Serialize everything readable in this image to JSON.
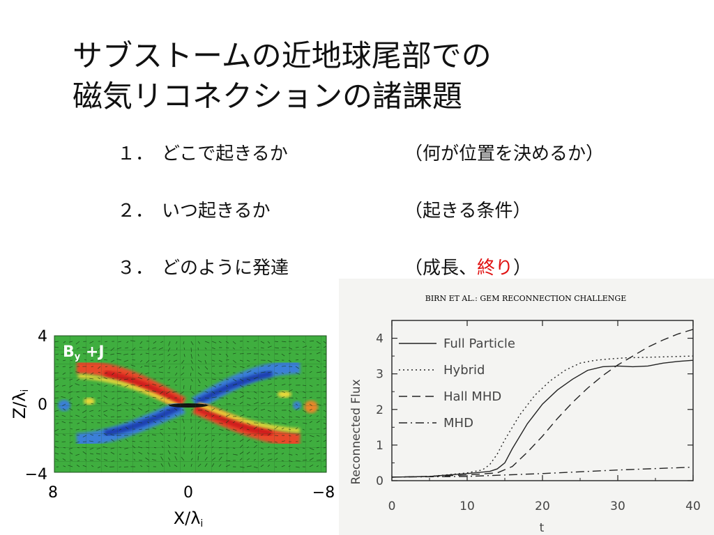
{
  "slide": {
    "title_line1": "サブストームの近地球尾部での",
    "title_line2": "磁気リコネクションの諸課題"
  },
  "items": [
    {
      "num": "１．",
      "question": "どこで起きるか",
      "note": "（何が位置を決めるか）"
    },
    {
      "num": "２．",
      "question": "いつ起きるか",
      "note": "（起きる条件）"
    },
    {
      "num": "３．",
      "question": "どのように発達",
      "note_before": "（成長、",
      "note_highlight": "終り",
      "note_after": "）"
    }
  ],
  "colors": {
    "highlight": "#e01010",
    "sim_background": "#3fae3f"
  },
  "sim_figure": {
    "panel_label": "B",
    "panel_label_sub": "y",
    "panel_label_rest": " +J",
    "y_ticks": [
      "4",
      "0",
      "−4"
    ],
    "x_ticks": [
      "8",
      "0",
      "−8"
    ],
    "ylabel": "Z/λ",
    "ylabel_sub": "i",
    "xlabel": "X/λ",
    "xlabel_sub": "i"
  },
  "chart_data": {
    "type": "line",
    "header": "BIRN ET AL.: GEM RECONNECTION CHALLENGE",
    "xlabel": "t",
    "ylabel": "Reconnected Flux",
    "xlim": [
      0,
      40
    ],
    "ylim": [
      0,
      4.5
    ],
    "x_ticks": [
      "0",
      "10",
      "20",
      "30",
      "40"
    ],
    "y_ticks": [
      "0",
      "1",
      "2",
      "3",
      "4"
    ],
    "legend_position": "top-left",
    "series": [
      {
        "name": "Full Particle",
        "dash": "solid",
        "x": [
          0,
          5,
          10,
          13,
          14,
          15,
          16,
          18,
          20,
          22,
          24,
          26,
          28,
          30,
          32,
          34,
          36,
          38,
          40
        ],
        "y": [
          0.1,
          0.12,
          0.2,
          0.26,
          0.33,
          0.5,
          0.9,
          1.6,
          2.15,
          2.55,
          2.85,
          3.1,
          3.2,
          3.22,
          3.2,
          3.22,
          3.3,
          3.35,
          3.38
        ]
      },
      {
        "name": "Hybrid",
        "dash": "dotted",
        "x": [
          0,
          5,
          10,
          12,
          13,
          14,
          15,
          17,
          19,
          21,
          23,
          25,
          27,
          29,
          31,
          35,
          40
        ],
        "y": [
          0.1,
          0.12,
          0.22,
          0.3,
          0.45,
          0.75,
          1.15,
          1.85,
          2.4,
          2.8,
          3.1,
          3.3,
          3.38,
          3.42,
          3.45,
          3.47,
          3.5
        ]
      },
      {
        "name": "Hall MHD",
        "dash": "dashed",
        "x": [
          0,
          5,
          10,
          14,
          16,
          18,
          20,
          22,
          24,
          26,
          28,
          30,
          32,
          34,
          36,
          38,
          40
        ],
        "y": [
          0.1,
          0.12,
          0.16,
          0.22,
          0.4,
          0.8,
          1.25,
          1.75,
          2.2,
          2.6,
          2.95,
          3.25,
          3.5,
          3.75,
          3.95,
          4.12,
          4.25
        ]
      },
      {
        "name": "MHD",
        "dash": "dashdot",
        "x": [
          0,
          10,
          20,
          30,
          40
        ],
        "y": [
          0.1,
          0.12,
          0.2,
          0.3,
          0.38
        ]
      }
    ]
  }
}
